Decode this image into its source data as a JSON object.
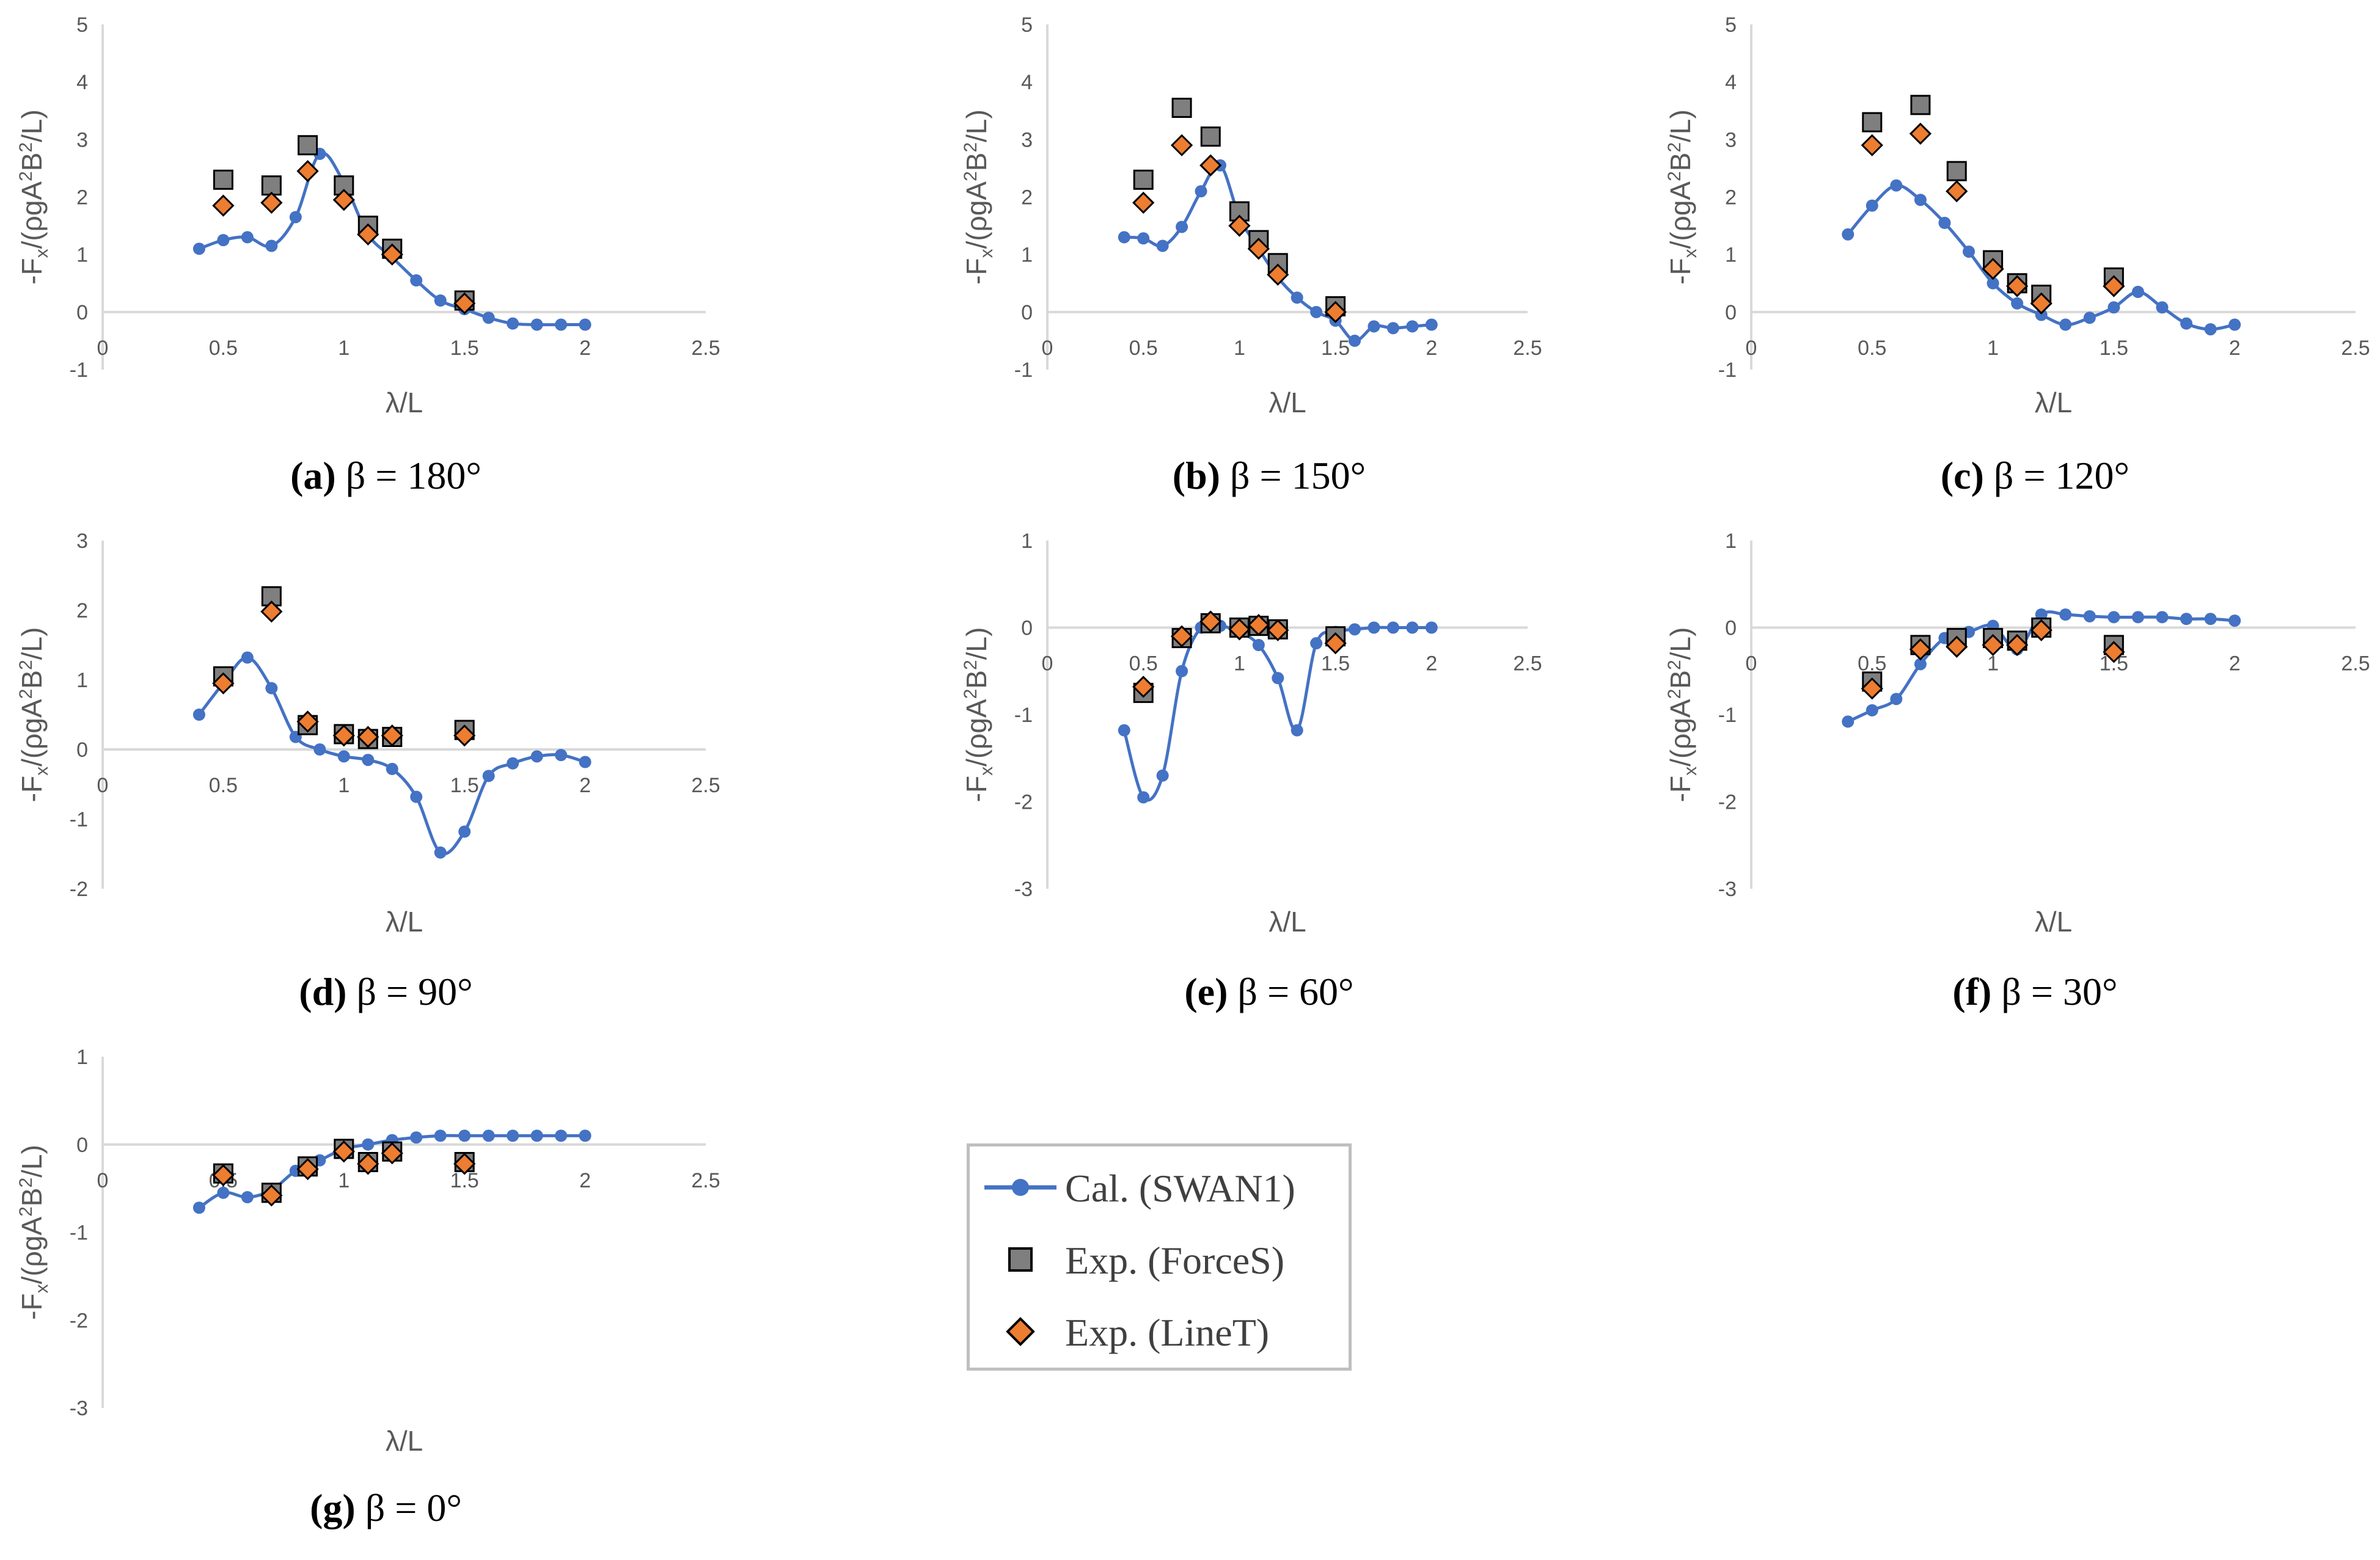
{
  "colors": {
    "line": "#4472c4",
    "square": "#7f7f7f",
    "diamond": "#ed7d31",
    "axis": "#d9d9d9",
    "tick_text": "#595959",
    "outline": "#000000"
  },
  "shared": {
    "xlabel": "λ/L",
    "ylabel_pre": "-F",
    "ylabel_sub": "x",
    "ylabel_mid": "/(ρgA",
    "ylabel_sup": "2",
    "ylabel_mid2": "B",
    "ylabel_sup2": "2",
    "ylabel_post": "/L)"
  },
  "legend": {
    "cal": "Cal. (SWAN1)",
    "forces": "Exp. (ForceS)",
    "linet": "Exp. (LineT)"
  },
  "chart_data": [
    {
      "type": "line+scatter",
      "id": "a",
      "caption_letter": "(a)",
      "caption_text": " β = 180°",
      "xlabel": "λ/L",
      "xlim": [
        0,
        2.5
      ],
      "ylim": [
        -1,
        5
      ],
      "xticks": [
        "0",
        "0.5",
        "1",
        "1.5",
        "2",
        "2.5"
      ],
      "yticks": [
        "-1",
        "0",
        "1",
        "2",
        "3",
        "4",
        "5"
      ],
      "series": [
        {
          "name": "Cal. (SWAN1)",
          "x": [
            0.4,
            0.5,
            0.6,
            0.7,
            0.8,
            0.9,
            1.0,
            1.1,
            1.2,
            1.3,
            1.4,
            1.5,
            1.6,
            1.7,
            1.8,
            1.9,
            2.0
          ],
          "y": [
            1.1,
            1.25,
            1.3,
            1.15,
            1.65,
            2.75,
            2.25,
            1.35,
            0.95,
            0.55,
            0.2,
            0.05,
            -0.1,
            -0.2,
            -0.22,
            -0.22,
            -0.22
          ]
        },
        {
          "name": "Exp. (ForceS)",
          "x": [
            0.5,
            0.7,
            0.85,
            1.0,
            1.1,
            1.2,
            1.5
          ],
          "y": [
            2.3,
            2.2,
            2.9,
            2.2,
            1.5,
            1.1,
            0.2
          ]
        },
        {
          "name": "Exp. (LineT)",
          "x": [
            0.5,
            0.7,
            0.85,
            1.0,
            1.1,
            1.2,
            1.5
          ],
          "y": [
            1.85,
            1.9,
            2.45,
            1.95,
            1.35,
            1.0,
            0.15
          ]
        }
      ]
    },
    {
      "type": "line+scatter",
      "id": "b",
      "caption_letter": "(b)",
      "caption_text": " β = 150°",
      "xlabel": "λ/L",
      "xlim": [
        0,
        2.5
      ],
      "ylim": [
        -1,
        5
      ],
      "xticks": [
        "0",
        "0.5",
        "1",
        "1.5",
        "2",
        "2.5"
      ],
      "yticks": [
        "-1",
        "0",
        "1",
        "2",
        "3",
        "4",
        "5"
      ],
      "series": [
        {
          "name": "Cal. (SWAN1)",
          "x": [
            0.4,
            0.5,
            0.6,
            0.7,
            0.8,
            0.9,
            1.0,
            1.1,
            1.2,
            1.3,
            1.4,
            1.5,
            1.6,
            1.7,
            1.8,
            1.9,
            2.0
          ],
          "y": [
            1.3,
            1.28,
            1.15,
            1.48,
            2.1,
            2.55,
            1.65,
            1.1,
            0.6,
            0.25,
            0.0,
            -0.15,
            -0.5,
            -0.25,
            -0.28,
            -0.25,
            -0.22
          ]
        },
        {
          "name": "Exp. (ForceS)",
          "x": [
            0.5,
            0.7,
            0.85,
            1.0,
            1.1,
            1.2,
            1.5
          ],
          "y": [
            2.3,
            3.55,
            3.05,
            1.75,
            1.25,
            0.85,
            0.1
          ]
        },
        {
          "name": "Exp. (LineT)",
          "x": [
            0.5,
            0.7,
            0.85,
            1.0,
            1.1,
            1.2,
            1.5
          ],
          "y": [
            1.9,
            2.9,
            2.55,
            1.5,
            1.1,
            0.65,
            0.0
          ]
        }
      ]
    },
    {
      "type": "line+scatter",
      "id": "c",
      "caption_letter": "(c)",
      "caption_text": " β = 120°",
      "xlabel": "λ/L",
      "xlim": [
        0,
        2.5
      ],
      "ylim": [
        -1,
        5
      ],
      "xticks": [
        "0",
        "0.5",
        "1",
        "1.5",
        "2",
        "2.5"
      ],
      "yticks": [
        "-1",
        "0",
        "1",
        "2",
        "3",
        "4",
        "5"
      ],
      "series": [
        {
          "name": "Cal. (SWAN1)",
          "x": [
            0.4,
            0.5,
            0.6,
            0.7,
            0.8,
            0.9,
            1.0,
            1.1,
            1.2,
            1.3,
            1.4,
            1.5,
            1.6,
            1.7,
            1.8,
            1.9,
            2.0
          ],
          "y": [
            1.35,
            1.85,
            2.2,
            1.95,
            1.55,
            1.05,
            0.5,
            0.15,
            -0.05,
            -0.22,
            -0.1,
            0.08,
            0.35,
            0.08,
            -0.2,
            -0.3,
            -0.22
          ]
        },
        {
          "name": "Exp. (ForceS)",
          "x": [
            0.5,
            0.7,
            0.85,
            1.0,
            1.1,
            1.2,
            1.5
          ],
          "y": [
            3.3,
            3.6,
            2.45,
            0.9,
            0.5,
            0.3,
            0.6
          ]
        },
        {
          "name": "Exp. (LineT)",
          "x": [
            0.5,
            0.7,
            0.85,
            1.0,
            1.1,
            1.2,
            1.5
          ],
          "y": [
            2.9,
            3.1,
            2.1,
            0.75,
            0.45,
            0.15,
            0.45
          ]
        }
      ]
    },
    {
      "type": "line+scatter",
      "id": "d",
      "caption_letter": "(d)",
      "caption_text": " β = 90°",
      "xlabel": "λ/L",
      "xlim": [
        0,
        2.5
      ],
      "ylim": [
        -2,
        3
      ],
      "xticks": [
        "0",
        "0.5",
        "1",
        "1.5",
        "2",
        "2.5"
      ],
      "yticks": [
        "-2",
        "-1",
        "0",
        "1",
        "2",
        "3"
      ],
      "series": [
        {
          "name": "Cal. (SWAN1)",
          "x": [
            0.4,
            0.5,
            0.6,
            0.7,
            0.8,
            0.9,
            1.0,
            1.1,
            1.2,
            1.3,
            1.4,
            1.5,
            1.6,
            1.7,
            1.8,
            1.9,
            2.0
          ],
          "y": [
            0.5,
            0.95,
            1.32,
            0.88,
            0.18,
            0.0,
            -0.1,
            -0.15,
            -0.28,
            -0.68,
            -1.48,
            -1.18,
            -0.38,
            -0.2,
            -0.1,
            -0.08,
            -0.18
          ]
        },
        {
          "name": "Exp. (ForceS)",
          "x": [
            0.5,
            0.7,
            0.85,
            1.0,
            1.1,
            1.2,
            1.5
          ],
          "y": [
            1.05,
            2.2,
            0.35,
            0.22,
            0.15,
            0.18,
            0.28
          ]
        },
        {
          "name": "Exp. (LineT)",
          "x": [
            0.5,
            0.7,
            0.85,
            1.0,
            1.1,
            1.2,
            1.5
          ],
          "y": [
            0.95,
            1.98,
            0.4,
            0.2,
            0.18,
            0.2,
            0.2
          ]
        }
      ]
    },
    {
      "type": "line+scatter",
      "id": "e",
      "caption_letter": "(e)",
      "caption_text": " β = 60°",
      "xlabel": "λ/L",
      "xlim": [
        0,
        2.5
      ],
      "ylim": [
        -3,
        1
      ],
      "xticks": [
        "0",
        "0.5",
        "1",
        "1.5",
        "2",
        "2.5"
      ],
      "yticks": [
        "-3",
        "-2",
        "-1",
        "0",
        "1"
      ],
      "series": [
        {
          "name": "Cal. (SWAN1)",
          "x": [
            0.4,
            0.5,
            0.6,
            0.7,
            0.8,
            0.9,
            1.0,
            1.1,
            1.2,
            1.3,
            1.4,
            1.5,
            1.6,
            1.7,
            1.8,
            1.9,
            2.0
          ],
          "y": [
            -1.18,
            -1.95,
            -1.7,
            -0.5,
            0.0,
            0.02,
            -0.05,
            -0.2,
            -0.58,
            -1.18,
            -0.18,
            -0.05,
            -0.02,
            0.0,
            0.0,
            0.0,
            0.0
          ]
        },
        {
          "name": "Exp. (ForceS)",
          "x": [
            0.5,
            0.7,
            0.85,
            1.0,
            1.1,
            1.2,
            1.5
          ],
          "y": [
            -0.75,
            -0.12,
            0.05,
            0.0,
            0.02,
            -0.02,
            -0.1
          ]
        },
        {
          "name": "Exp. (LineT)",
          "x": [
            0.5,
            0.7,
            0.85,
            1.0,
            1.1,
            1.2,
            1.5
          ],
          "y": [
            -0.68,
            -0.1,
            0.07,
            -0.02,
            0.03,
            -0.03,
            -0.18
          ]
        }
      ]
    },
    {
      "type": "line+scatter",
      "id": "f",
      "caption_letter": "(f)",
      "caption_text": " β = 30°",
      "xlabel": "λ/L",
      "xlim": [
        0,
        2.5
      ],
      "ylim": [
        -3,
        1
      ],
      "xticks": [
        "0",
        "0.5",
        "1",
        "1.5",
        "2",
        "2.5"
      ],
      "yticks": [
        "-3",
        "-2",
        "-1",
        "0",
        "1"
      ],
      "series": [
        {
          "name": "Cal. (SWAN1)",
          "x": [
            0.4,
            0.5,
            0.6,
            0.7,
            0.8,
            0.9,
            1.0,
            1.1,
            1.2,
            1.3,
            1.4,
            1.5,
            1.6,
            1.7,
            1.8,
            1.9,
            2.0
          ],
          "y": [
            -1.08,
            -0.95,
            -0.82,
            -0.42,
            -0.12,
            -0.05,
            0.02,
            -0.25,
            0.15,
            0.15,
            0.13,
            0.12,
            0.12,
            0.12,
            0.1,
            0.1,
            0.08
          ]
        },
        {
          "name": "Exp. (ForceS)",
          "x": [
            0.5,
            0.7,
            0.85,
            1.0,
            1.1,
            1.2,
            1.5
          ],
          "y": [
            -0.62,
            -0.2,
            -0.12,
            -0.12,
            -0.15,
            0.0,
            -0.2
          ]
        },
        {
          "name": "Exp. (LineT)",
          "x": [
            0.5,
            0.7,
            0.85,
            1.0,
            1.1,
            1.2,
            1.5
          ],
          "y": [
            -0.7,
            -0.25,
            -0.22,
            -0.2,
            -0.2,
            -0.03,
            -0.28
          ]
        }
      ]
    },
    {
      "type": "line+scatter",
      "id": "g",
      "caption_letter": "(g)",
      "caption_text": " β = 0°",
      "xlabel": "λ/L",
      "xlim": [
        0,
        2.5
      ],
      "ylim": [
        -3,
        1
      ],
      "xticks": [
        "0",
        "0.5",
        "1",
        "1.5",
        "2",
        "2.5"
      ],
      "yticks": [
        "-3",
        "-2",
        "-1",
        "0",
        "1"
      ],
      "series": [
        {
          "name": "Cal. (SWAN1)",
          "x": [
            0.4,
            0.5,
            0.6,
            0.7,
            0.8,
            0.9,
            1.0,
            1.1,
            1.2,
            1.3,
            1.4,
            1.5,
            1.6,
            1.7,
            1.8,
            1.9,
            2.0
          ],
          "y": [
            -0.72,
            -0.55,
            -0.6,
            -0.52,
            -0.3,
            -0.18,
            -0.05,
            0.0,
            0.05,
            0.08,
            0.1,
            0.1,
            0.1,
            0.1,
            0.1,
            0.1,
            0.1
          ]
        },
        {
          "name": "Exp. (ForceS)",
          "x": [
            0.5,
            0.7,
            0.85,
            1.0,
            1.1,
            1.2,
            1.5
          ],
          "y": [
            -0.33,
            -0.55,
            -0.25,
            -0.05,
            -0.2,
            -0.08,
            -0.2
          ]
        },
        {
          "name": "Exp. (LineT)",
          "x": [
            0.5,
            0.7,
            0.85,
            1.0,
            1.1,
            1.2,
            1.5
          ],
          "y": [
            -0.35,
            -0.58,
            -0.28,
            -0.08,
            -0.22,
            -0.1,
            -0.22
          ]
        }
      ]
    }
  ]
}
